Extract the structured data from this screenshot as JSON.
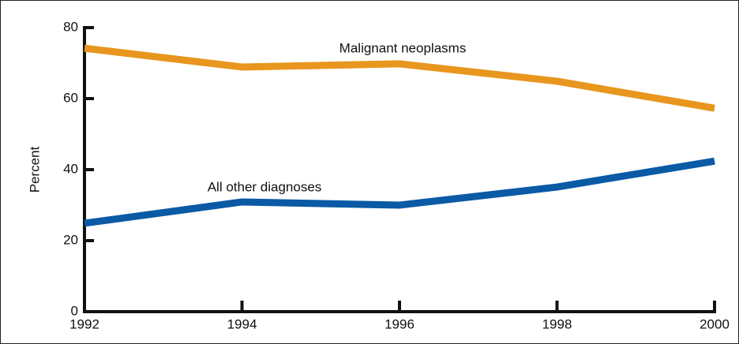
{
  "chart_data": {
    "type": "line",
    "y_label": "Percent",
    "x": [
      1992,
      1994,
      1996,
      1998,
      2000
    ],
    "series": [
      {
        "name": "Malignant neoplasms",
        "color": "#e8961e",
        "values": [
          74.2,
          68.9,
          69.8,
          64.9,
          57.3
        ]
      },
      {
        "name": "All other diagnoses",
        "color": "#0a5aa5",
        "values": [
          24.9,
          30.9,
          30.0,
          35.1,
          42.4
        ]
      }
    ],
    "xlim": [
      1992,
      2000
    ],
    "xticks": [
      1992,
      1994,
      1996,
      1998,
      2000
    ],
    "ylim": [
      0,
      80
    ],
    "yticks": [
      0,
      20,
      40,
      60,
      80
    ],
    "grid": false
  }
}
